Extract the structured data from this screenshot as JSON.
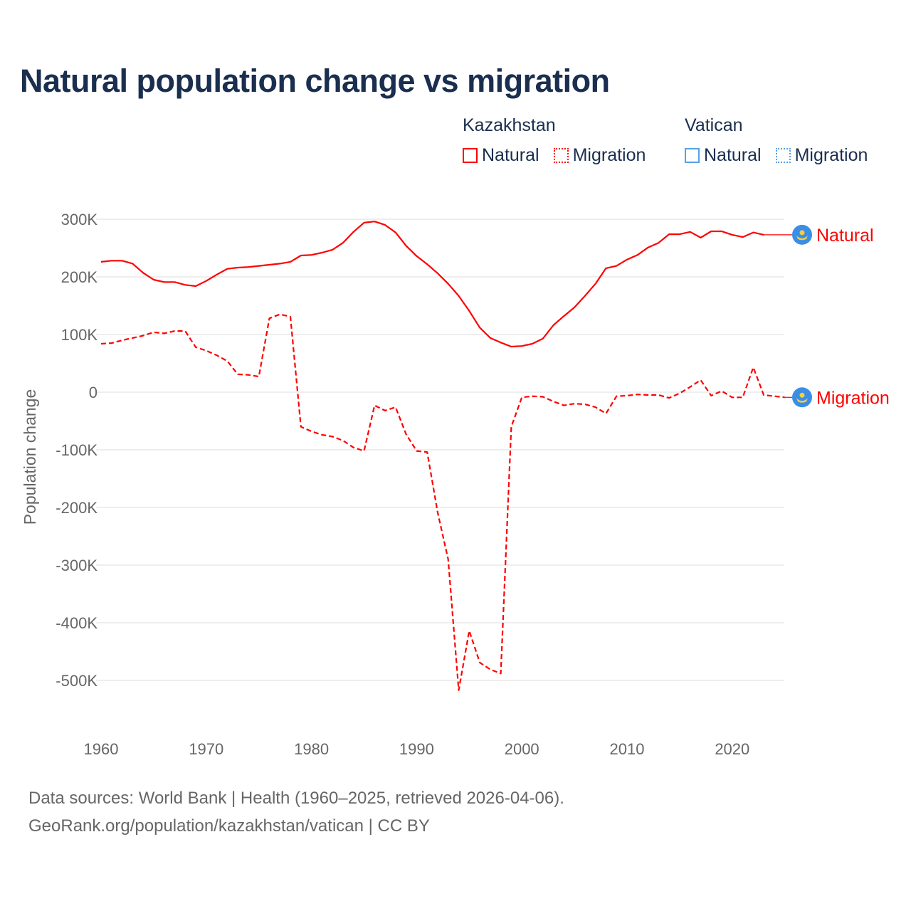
{
  "chart_data": {
    "type": "line",
    "title": "Natural population change vs migration",
    "ylabel": "Population change",
    "xlabel": "",
    "xlim": [
      1960,
      2025
    ],
    "ylim": [
      -500000,
      300000
    ],
    "x_ticks": [
      "1960",
      "1970",
      "1980",
      "1990",
      "2000",
      "2010",
      "2020"
    ],
    "y_ticks": [
      "300K",
      "200K",
      "100K",
      "0",
      "-100K",
      "-200K",
      "-300K",
      "-400K",
      "-500K"
    ],
    "y_tick_values": [
      300000,
      200000,
      100000,
      0,
      -100000,
      -200000,
      -300000,
      -400000,
      -500000
    ],
    "grid": true,
    "legend": {
      "placement": "top-right",
      "groups": [
        {
          "name": "Kazakhstan",
          "items": [
            "Natural",
            "Migration"
          ],
          "color": "#ff0000"
        },
        {
          "name": "Vatican",
          "items": [
            "Natural",
            "Migration"
          ],
          "color": "#5aa0e6"
        }
      ]
    },
    "series": [
      {
        "name": "Natural",
        "country": "Kazakhstan",
        "style": "solid",
        "color": "#ff0000",
        "start_year": 1960,
        "values": [
          226,
          228,
          228,
          223,
          207,
          195,
          191,
          191,
          186,
          184,
          193,
          204,
          214,
          216,
          217,
          219,
          221,
          223,
          226,
          237,
          238,
          242,
          247,
          259,
          278,
          294,
          296,
          290,
          277,
          254,
          236,
          222,
          206,
          188,
          167,
          141,
          112,
          94,
          86,
          79,
          80,
          84,
          93,
          116,
          132,
          147,
          167,
          188,
          215,
          219,
          230,
          238,
          251,
          259,
          274,
          274,
          278,
          268,
          279,
          279,
          273,
          269,
          277,
          273
        ]
      },
      {
        "name": "Migration",
        "country": "Kazakhstan",
        "style": "dashed",
        "color": "#ff0000",
        "start_year": 1960,
        "values": [
          84,
          85,
          90,
          94,
          98,
          104,
          102,
          106,
          106,
          78,
          72,
          64,
          54,
          31,
          30,
          27,
          128,
          135,
          131,
          -60,
          -68,
          -74,
          -77,
          -84,
          -96,
          -102,
          -23,
          -32,
          -26,
          -73,
          -102,
          -104,
          -209,
          -290,
          -517,
          -414,
          -469,
          -481,
          -488,
          -60,
          -9,
          -7,
          -8,
          -16,
          -23,
          -20,
          -21,
          -26,
          -37,
          -7,
          -6,
          -4,
          -5,
          -5,
          -10,
          -2,
          9,
          21,
          -6,
          2,
          -9,
          -9,
          43,
          -5,
          -7,
          -9
        ]
      }
    ],
    "value_unit": "thousands",
    "end_labels": [
      "Natural",
      "Migration"
    ]
  },
  "sources": {
    "line1": "Data sources: World Bank | Health (1960–2025, retrieved 2026-04-06).",
    "line2": "GeoRank.org/population/kazakhstan/vatican | CC BY"
  },
  "colors": {
    "title": "#1a2e4f",
    "kazakhstan": "#ff0000",
    "vatican": "#5aa0e6",
    "flag_bg": "#3a8ee6",
    "flag_sun": "#f5cf3a"
  }
}
